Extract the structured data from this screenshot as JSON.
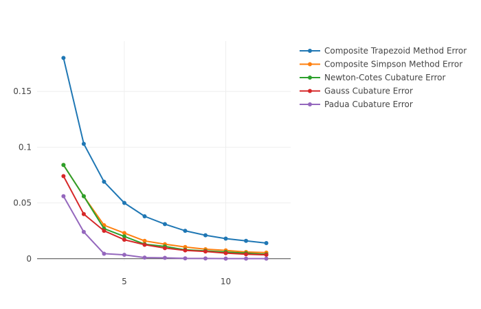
{
  "chart_data": {
    "type": "line",
    "title": "",
    "xlabel": "",
    "ylabel": "",
    "x": [
      2,
      3,
      4,
      5,
      6,
      7,
      8,
      9,
      10,
      11,
      12
    ],
    "xlim": [
      0.7,
      13.2
    ],
    "ylim": [
      -0.002,
      0.195
    ],
    "xticks": [
      5,
      10
    ],
    "yticks": [
      0,
      0.05,
      0.1,
      0.15
    ],
    "ytick_labels": [
      "0",
      "0.05",
      "0.1",
      "0.15"
    ],
    "xtick_labels": [
      "5",
      "10"
    ],
    "grid": true,
    "legend_position": "top-right",
    "series": [
      {
        "name": "Composite Trapezoid Method Error",
        "color": "#1f77b4",
        "values": [
          0.18,
          0.103,
          0.069,
          0.05,
          0.038,
          0.031,
          0.025,
          0.021,
          0.018,
          0.016,
          0.014
        ]
      },
      {
        "name": "Composite Simpson Method Error",
        "color": "#ff7f0e",
        "values": [
          0.084,
          0.056,
          0.03,
          0.023,
          0.016,
          0.013,
          0.0105,
          0.0085,
          0.0075,
          0.006,
          0.0055
        ]
      },
      {
        "name": "Newton-Cotes Cubature Error",
        "color": "#2ca02c",
        "values": [
          0.084,
          0.056,
          0.027,
          0.02,
          0.013,
          0.011,
          0.008,
          0.007,
          0.006,
          0.005,
          0.004
        ]
      },
      {
        "name": "Gauss Cubature Error",
        "color": "#d62728",
        "values": [
          0.074,
          0.04,
          0.025,
          0.017,
          0.0125,
          0.0095,
          0.0075,
          0.0065,
          0.005,
          0.004,
          0.0035
        ]
      },
      {
        "name": "Padua Cubature Error",
        "color": "#9467bd",
        "values": [
          0.056,
          0.024,
          0.0045,
          0.0035,
          0.001,
          0.0008,
          0.0003,
          0.0002,
          0.0001,
          0.0001,
          5e-05
        ]
      }
    ]
  }
}
